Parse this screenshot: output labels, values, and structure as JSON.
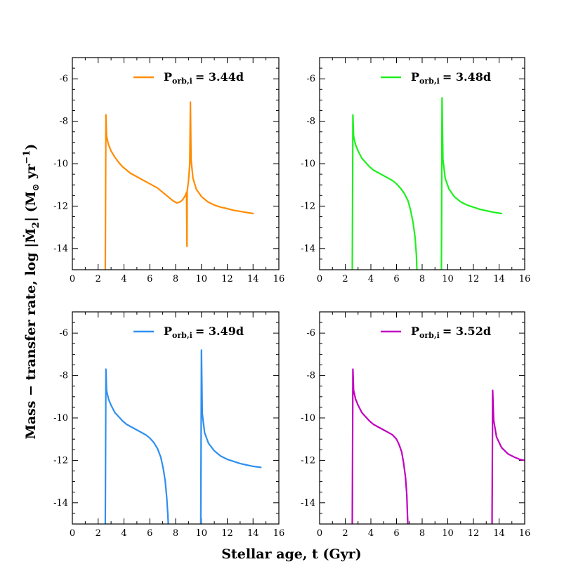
{
  "chart_data": {
    "type": "line",
    "xlabel": "Stellar age, t (Gyr)",
    "ylabel_prefix": "Mass − transfer rate, log |Ṁ",
    "ylabel_sub": "2",
    "ylabel_mid": "| (M",
    "ylabel_sun": "⊙",
    "ylabel_unit": " yr",
    "ylabel_exp": "−1",
    "ylabel_end": ")",
    "xlim": [
      0,
      16
    ],
    "ylim": [
      -15,
      -5
    ],
    "xticks": [
      0,
      2,
      4,
      6,
      8,
      10,
      12,
      14,
      16
    ],
    "xtick_labels": [
      "0",
      "2",
      "4",
      "6",
      "8",
      "10",
      "12",
      "14",
      "16"
    ],
    "yticks": [
      -6,
      -8,
      -10,
      -12,
      -14
    ],
    "ytick_labels": [
      "-6",
      "-8",
      "-10",
      "-12",
      "-14"
    ],
    "panels": [
      {
        "legend_symbol": "P",
        "legend_sub": "orb,i",
        "legend_value": "= 3.44d",
        "color": "#ff8c00",
        "points": [
          [
            2.55,
            -15.2
          ],
          [
            2.6,
            -7.7
          ],
          [
            2.65,
            -8.7
          ],
          [
            2.8,
            -9.1
          ],
          [
            3.0,
            -9.4
          ],
          [
            3.3,
            -9.7
          ],
          [
            3.6,
            -9.95
          ],
          [
            3.9,
            -10.15
          ],
          [
            4.2,
            -10.3
          ],
          [
            4.5,
            -10.45
          ],
          [
            4.8,
            -10.55
          ],
          [
            5.1,
            -10.65
          ],
          [
            5.4,
            -10.75
          ],
          [
            5.7,
            -10.85
          ],
          [
            6.0,
            -10.95
          ],
          [
            6.3,
            -11.05
          ],
          [
            6.6,
            -11.15
          ],
          [
            6.9,
            -11.3
          ],
          [
            7.2,
            -11.45
          ],
          [
            7.5,
            -11.6
          ],
          [
            7.8,
            -11.75
          ],
          [
            8.1,
            -11.85
          ],
          [
            8.35,
            -11.8
          ],
          [
            8.55,
            -11.7
          ],
          [
            8.75,
            -11.5
          ],
          [
            8.85,
            -11.35
          ],
          [
            8.88,
            -13.9
          ],
          [
            8.9,
            -11.3
          ],
          [
            9.0,
            -10.8
          ],
          [
            9.1,
            -10.0
          ],
          [
            9.15,
            -7.1
          ],
          [
            9.2,
            -9.8
          ],
          [
            9.35,
            -10.7
          ],
          [
            9.6,
            -11.2
          ],
          [
            10.0,
            -11.55
          ],
          [
            10.5,
            -11.8
          ],
          [
            11.0,
            -11.95
          ],
          [
            11.5,
            -12.05
          ],
          [
            12.0,
            -12.12
          ],
          [
            12.5,
            -12.2
          ],
          [
            13.0,
            -12.25
          ],
          [
            13.5,
            -12.3
          ],
          [
            14.0,
            -12.35
          ]
        ]
      },
      {
        "legend_symbol": "P",
        "legend_sub": "orb,i",
        "legend_value": "= 3.48d",
        "color": "#1ef01e",
        "points": [
          [
            2.55,
            -15.2
          ],
          [
            2.6,
            -7.7
          ],
          [
            2.65,
            -8.7
          ],
          [
            2.8,
            -9.1
          ],
          [
            3.0,
            -9.4
          ],
          [
            3.3,
            -9.75
          ],
          [
            3.6,
            -9.95
          ],
          [
            3.9,
            -10.15
          ],
          [
            4.2,
            -10.3
          ],
          [
            4.5,
            -10.4
          ],
          [
            4.8,
            -10.5
          ],
          [
            5.1,
            -10.6
          ],
          [
            5.4,
            -10.7
          ],
          [
            5.7,
            -10.8
          ],
          [
            6.0,
            -10.95
          ],
          [
            6.3,
            -11.15
          ],
          [
            6.6,
            -11.4
          ],
          [
            6.9,
            -11.75
          ],
          [
            7.1,
            -12.2
          ],
          [
            7.3,
            -12.8
          ],
          [
            7.45,
            -13.5
          ],
          [
            7.55,
            -14.3
          ],
          [
            7.6,
            -15.2
          ]
        ],
        "points2": [
          [
            9.5,
            -15.2
          ],
          [
            9.55,
            -6.9
          ],
          [
            9.62,
            -9.8
          ],
          [
            9.8,
            -10.7
          ],
          [
            10.1,
            -11.2
          ],
          [
            10.5,
            -11.55
          ],
          [
            11.0,
            -11.8
          ],
          [
            11.5,
            -11.95
          ],
          [
            12.0,
            -12.05
          ],
          [
            12.5,
            -12.15
          ],
          [
            13.0,
            -12.22
          ],
          [
            13.5,
            -12.28
          ],
          [
            14.2,
            -12.35
          ]
        ]
      },
      {
        "legend_symbol": "P",
        "legend_sub": "orb,i",
        "legend_value": "= 3.49d",
        "color": "#2f8ff0",
        "points": [
          [
            2.55,
            -15.2
          ],
          [
            2.6,
            -7.7
          ],
          [
            2.65,
            -8.7
          ],
          [
            2.8,
            -9.1
          ],
          [
            3.0,
            -9.4
          ],
          [
            3.3,
            -9.75
          ],
          [
            3.6,
            -9.95
          ],
          [
            3.9,
            -10.15
          ],
          [
            4.2,
            -10.3
          ],
          [
            4.5,
            -10.4
          ],
          [
            4.8,
            -10.5
          ],
          [
            5.1,
            -10.6
          ],
          [
            5.4,
            -10.7
          ],
          [
            5.7,
            -10.8
          ],
          [
            6.0,
            -10.95
          ],
          [
            6.3,
            -11.15
          ],
          [
            6.6,
            -11.45
          ],
          [
            6.85,
            -11.85
          ],
          [
            7.05,
            -12.4
          ],
          [
            7.2,
            -13.0
          ],
          [
            7.32,
            -13.8
          ],
          [
            7.4,
            -14.6
          ],
          [
            7.45,
            -15.2
          ]
        ],
        "points2": [
          [
            9.95,
            -15.2
          ],
          [
            10.0,
            -6.8
          ],
          [
            10.07,
            -9.8
          ],
          [
            10.25,
            -10.7
          ],
          [
            10.55,
            -11.2
          ],
          [
            11.0,
            -11.55
          ],
          [
            11.5,
            -11.8
          ],
          [
            12.0,
            -11.95
          ],
          [
            12.5,
            -12.05
          ],
          [
            13.0,
            -12.15
          ],
          [
            13.5,
            -12.22
          ],
          [
            14.0,
            -12.28
          ],
          [
            14.6,
            -12.33
          ]
        ]
      },
      {
        "legend_symbol": "P",
        "legend_sub": "orb,i",
        "legend_value": "= 3.52d",
        "color": "#c000c0",
        "points": [
          [
            2.55,
            -15.2
          ],
          [
            2.6,
            -7.7
          ],
          [
            2.65,
            -8.7
          ],
          [
            2.8,
            -9.1
          ],
          [
            3.0,
            -9.4
          ],
          [
            3.3,
            -9.75
          ],
          [
            3.6,
            -9.95
          ],
          [
            3.9,
            -10.15
          ],
          [
            4.2,
            -10.3
          ],
          [
            4.5,
            -10.4
          ],
          [
            4.8,
            -10.5
          ],
          [
            5.1,
            -10.6
          ],
          [
            5.4,
            -10.7
          ],
          [
            5.7,
            -10.8
          ],
          [
            6.0,
            -11.0
          ],
          [
            6.2,
            -11.25
          ],
          [
            6.4,
            -11.6
          ],
          [
            6.55,
            -12.1
          ],
          [
            6.7,
            -12.8
          ],
          [
            6.8,
            -13.6
          ],
          [
            6.85,
            -14.5
          ],
          [
            6.9,
            -15.2
          ]
        ],
        "points2": [
          [
            13.45,
            -15.2
          ],
          [
            13.5,
            -8.7
          ],
          [
            13.58,
            -10.1
          ],
          [
            13.8,
            -10.9
          ],
          [
            14.2,
            -11.4
          ],
          [
            14.7,
            -11.7
          ],
          [
            15.2,
            -11.85
          ],
          [
            15.6,
            -11.95
          ],
          [
            16.0,
            -12.0
          ]
        ]
      }
    ]
  }
}
